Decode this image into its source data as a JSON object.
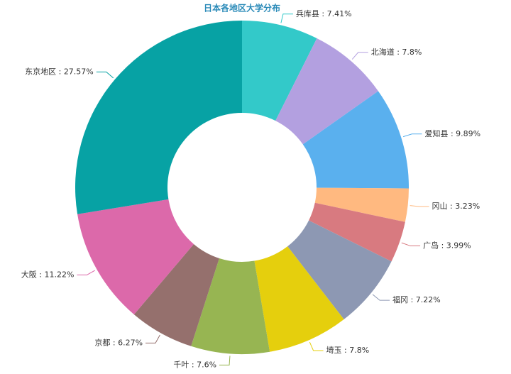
{
  "chart_data": {
    "type": "donut",
    "title": "日本各地区大学分布",
    "categories": [
      "兵库县",
      "北海道",
      "爱知县",
      "冈山",
      "广岛",
      "福冈",
      "埼玉",
      "千叶",
      "京都",
      "大阪",
      "东京地区"
    ],
    "values": [
      7.41,
      7.8,
      9.89,
      3.23,
      3.99,
      7.22,
      7.8,
      7.6,
      6.27,
      11.22,
      27.57
    ],
    "value_labels": [
      "7.41%",
      "7.8%",
      "9.89%",
      "3.23%",
      "3.99%",
      "7.22%",
      "7.8%",
      "7.6%",
      "6.27%",
      "11.22%",
      "27.57%"
    ],
    "label_separator": " : ",
    "colors": [
      "#33c9c9",
      "#b3a0e0",
      "#5ab0ee",
      "#ffb980",
      "#d87a80",
      "#8d98b3",
      "#e5cf0d",
      "#97b552",
      "#95706d",
      "#dc69aa",
      "#07a2a4"
    ]
  }
}
